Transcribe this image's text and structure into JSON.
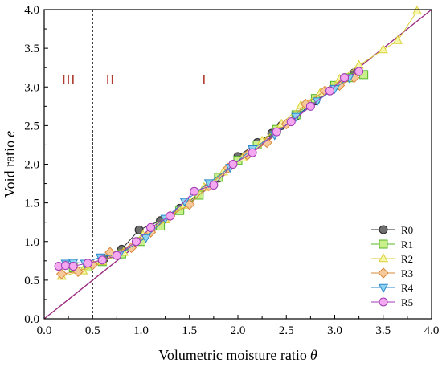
{
  "chart_data": {
    "type": "scatter",
    "xlabel": "Volumetric moisture  ratio",
    "xlabel_symbol": "θ",
    "ylabel": "Void ratio",
    "ylabel_symbol": "e",
    "xlim": [
      0.0,
      4.0
    ],
    "ylim": [
      0.0,
      4.0
    ],
    "xticks": [
      "0.0",
      "0.5",
      "1.0",
      "1.5",
      "2.0",
      "2.5",
      "3.0",
      "3.5",
      "4.0"
    ],
    "yticks": [
      "0.0",
      "0.5",
      "1.0",
      "1.5",
      "2.0",
      "2.5",
      "3.0",
      "3.5",
      "4.0"
    ],
    "grid": false,
    "legend_position": "bottom-right",
    "region_boundaries_x": [
      0.5,
      1.0
    ],
    "region_labels": [
      {
        "text": "III",
        "x": 0.25,
        "y": 3.1
      },
      {
        "text": "II",
        "x": 0.68,
        "y": 3.1
      },
      {
        "text": "I",
        "x": 1.65,
        "y": 3.1
      }
    ],
    "reference_line": {
      "x": [
        0.0,
        4.0
      ],
      "y": [
        0.0,
        4.0
      ],
      "color": "#9b2d7f"
    },
    "series": [
      {
        "name": "R0",
        "marker": "circle",
        "fill": "#6f6f6f",
        "stroke": "#2a2a2a",
        "x": [
          0.45,
          0.62,
          0.8,
          0.98,
          1.2,
          1.4,
          1.6,
          1.8,
          2.0,
          2.2,
          2.35,
          2.45,
          2.6,
          2.8,
          2.95,
          3.1,
          3.2
        ],
        "y": [
          0.7,
          0.78,
          0.9,
          1.15,
          1.27,
          1.43,
          1.62,
          1.82,
          2.1,
          2.28,
          2.4,
          2.5,
          2.62,
          2.82,
          2.95,
          3.12,
          3.18
        ]
      },
      {
        "name": "R1",
        "marker": "square",
        "fill": "#c9f08a",
        "stroke": "#55b52a",
        "x": [
          0.3,
          0.45,
          0.6,
          0.8,
          1.0,
          1.2,
          1.4,
          1.6,
          1.8,
          2.0,
          2.2,
          2.4,
          2.6,
          2.8,
          3.0,
          3.15,
          3.3
        ],
        "y": [
          0.66,
          0.67,
          0.74,
          0.84,
          1.0,
          1.2,
          1.4,
          1.6,
          1.83,
          2.05,
          2.25,
          2.45,
          2.64,
          2.85,
          3.02,
          3.12,
          3.16
        ]
      },
      {
        "name": "R2",
        "marker": "triangle-up",
        "fill": "#f6f6a8",
        "stroke": "#d9cf3a",
        "x": [
          0.18,
          0.4,
          0.6,
          0.82,
          1.02,
          1.25,
          1.45,
          1.65,
          1.85,
          2.05,
          2.25,
          2.45,
          2.65,
          2.85,
          3.05,
          3.25,
          3.5,
          3.65,
          3.85
        ],
        "y": [
          0.55,
          0.62,
          0.74,
          0.86,
          1.08,
          1.28,
          1.47,
          1.7,
          1.9,
          2.08,
          2.3,
          2.52,
          2.76,
          2.92,
          3.1,
          3.28,
          3.48,
          3.6,
          3.98
        ]
      },
      {
        "name": "R3",
        "marker": "diamond",
        "fill": "#f6c99a",
        "stroke": "#d9883a",
        "x": [
          0.18,
          0.35,
          0.5,
          0.68,
          0.9,
          1.1,
          1.3,
          1.5,
          1.7,
          1.9,
          2.1,
          2.3,
          2.5,
          2.7,
          2.9,
          3.05,
          3.2
        ],
        "y": [
          0.58,
          0.61,
          0.7,
          0.86,
          0.92,
          1.12,
          1.33,
          1.48,
          1.72,
          1.95,
          2.12,
          2.28,
          2.52,
          2.78,
          2.95,
          3.02,
          3.12
        ]
      },
      {
        "name": "R4",
        "marker": "triangle-down",
        "fill": "#8fd3f2",
        "stroke": "#2a86c9",
        "x": [
          0.22,
          0.3,
          0.42,
          0.58,
          0.78,
          1.05,
          1.25,
          1.45,
          1.7,
          1.92,
          2.15,
          2.38,
          2.6,
          2.82,
          3.0,
          3.15
        ],
        "y": [
          0.72,
          0.73,
          0.72,
          0.8,
          0.84,
          1.05,
          1.3,
          1.52,
          1.76,
          1.96,
          2.2,
          2.38,
          2.62,
          2.82,
          2.98,
          3.12
        ]
      },
      {
        "name": "R5",
        "marker": "circle",
        "fill": "#f3a8f0",
        "stroke": "#a23ab5",
        "x": [
          0.15,
          0.22,
          0.3,
          0.45,
          0.6,
          0.75,
          0.95,
          1.1,
          1.3,
          1.55,
          1.75,
          1.95,
          2.15,
          2.4,
          2.55,
          2.75,
          2.95,
          3.1,
          3.25
        ],
        "y": [
          0.68,
          0.69,
          0.68,
          0.72,
          0.76,
          0.82,
          1.0,
          1.18,
          1.33,
          1.65,
          1.73,
          2.0,
          2.15,
          2.42,
          2.55,
          2.75,
          2.95,
          3.12,
          3.2
        ]
      }
    ]
  }
}
